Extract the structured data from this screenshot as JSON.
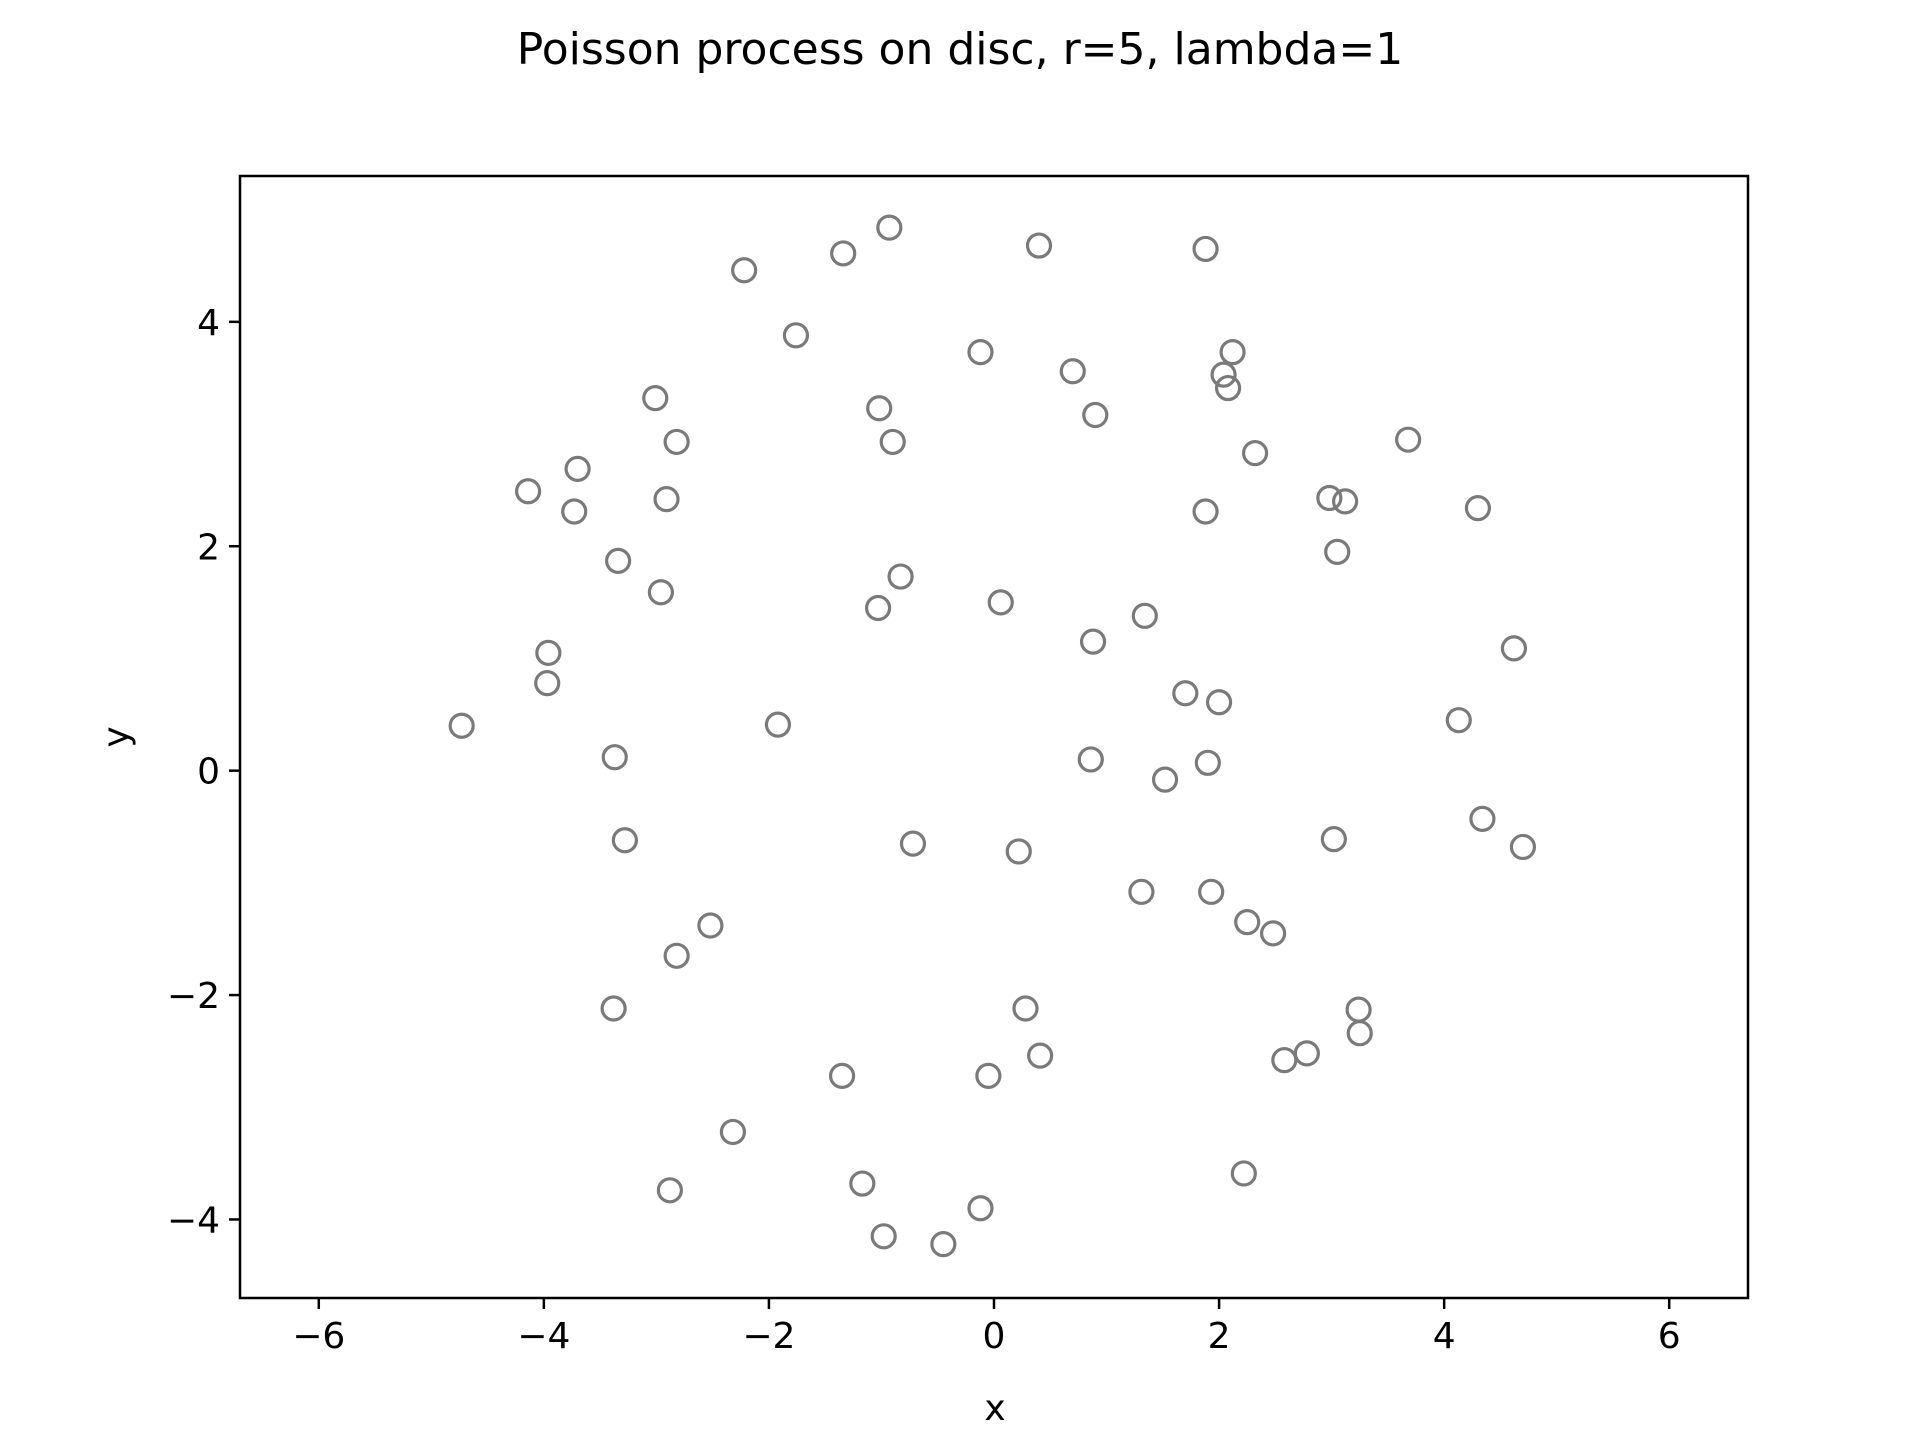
{
  "chart_data": {
    "type": "scatter",
    "title": "Poisson process on disc, r=5, lambda=1",
    "xlabel": "x",
    "ylabel": "y",
    "xlim": [
      -6.7,
      6.7
    ],
    "ylim": [
      -4.7,
      5.3
    ],
    "xticks": [
      -6,
      -4,
      -2,
      0,
      2,
      4,
      6
    ],
    "xtick_labels": [
      "−6",
      "−4",
      "−2",
      "0",
      "2",
      "4",
      "6"
    ],
    "yticks": [
      -4,
      -2,
      0,
      2,
      4
    ],
    "ytick_labels": [
      "−4",
      "−2",
      "0",
      "2",
      "4"
    ],
    "grid": false,
    "marker": "open-circle",
    "marker_color": "#7a7a7a",
    "points": [
      {
        "x": -0.93,
        "y": 4.84
      },
      {
        "x": -2.22,
        "y": 4.46
      },
      {
        "x": -1.34,
        "y": 4.61
      },
      {
        "x": 0.4,
        "y": 4.68
      },
      {
        "x": 1.88,
        "y": 4.65
      },
      {
        "x": -1.76,
        "y": 3.88
      },
      {
        "x": -0.12,
        "y": 3.73
      },
      {
        "x": 0.7,
        "y": 3.56
      },
      {
        "x": 2.12,
        "y": 3.73
      },
      {
        "x": 2.04,
        "y": 3.53
      },
      {
        "x": 2.08,
        "y": 3.41
      },
      {
        "x": -3.01,
        "y": 3.32
      },
      {
        "x": -1.02,
        "y": 3.23
      },
      {
        "x": 0.9,
        "y": 3.17
      },
      {
        "x": -2.82,
        "y": 2.93
      },
      {
        "x": -0.9,
        "y": 2.93
      },
      {
        "x": 2.32,
        "y": 2.83
      },
      {
        "x": 3.68,
        "y": 2.95
      },
      {
        "x": -3.7,
        "y": 2.69
      },
      {
        "x": -4.14,
        "y": 2.49
      },
      {
        "x": -2.91,
        "y": 2.42
      },
      {
        "x": -3.73,
        "y": 2.31
      },
      {
        "x": 1.88,
        "y": 2.31
      },
      {
        "x": 2.98,
        "y": 2.43
      },
      {
        "x": 3.12,
        "y": 2.4
      },
      {
        "x": 4.3,
        "y": 2.34
      },
      {
        "x": 3.05,
        "y": 1.95
      },
      {
        "x": -3.34,
        "y": 1.87
      },
      {
        "x": -0.83,
        "y": 1.73
      },
      {
        "x": -2.96,
        "y": 1.59
      },
      {
        "x": 0.06,
        "y": 1.5
      },
      {
        "x": -1.03,
        "y": 1.45
      },
      {
        "x": 1.34,
        "y": 1.38
      },
      {
        "x": 0.88,
        "y": 1.15
      },
      {
        "x": 4.62,
        "y": 1.09
      },
      {
        "x": -3.96,
        "y": 1.05
      },
      {
        "x": -3.97,
        "y": 0.78
      },
      {
        "x": 1.7,
        "y": 0.69
      },
      {
        "x": 2.0,
        "y": 0.61
      },
      {
        "x": -4.73,
        "y": 0.4
      },
      {
        "x": -1.92,
        "y": 0.41
      },
      {
        "x": 4.13,
        "y": 0.45
      },
      {
        "x": -3.37,
        "y": 0.12
      },
      {
        "x": 0.86,
        "y": 0.1
      },
      {
        "x": 1.9,
        "y": 0.07
      },
      {
        "x": 1.52,
        "y": -0.08
      },
      {
        "x": 4.34,
        "y": -0.43
      },
      {
        "x": -3.28,
        "y": -0.62
      },
      {
        "x": 3.02,
        "y": -0.61
      },
      {
        "x": -0.72,
        "y": -0.65
      },
      {
        "x": 0.22,
        "y": -0.72
      },
      {
        "x": 4.7,
        "y": -0.68
      },
      {
        "x": 1.31,
        "y": -1.08
      },
      {
        "x": 1.93,
        "y": -1.08
      },
      {
        "x": -2.52,
        "y": -1.38
      },
      {
        "x": 2.25,
        "y": -1.35
      },
      {
        "x": 2.48,
        "y": -1.45
      },
      {
        "x": -2.82,
        "y": -1.65
      },
      {
        "x": -3.38,
        "y": -2.12
      },
      {
        "x": 0.28,
        "y": -2.12
      },
      {
        "x": 3.24,
        "y": -2.13
      },
      {
        "x": 3.25,
        "y": -2.34
      },
      {
        "x": 0.41,
        "y": -2.54
      },
      {
        "x": 2.78,
        "y": -2.52
      },
      {
        "x": 2.58,
        "y": -2.58
      },
      {
        "x": -1.35,
        "y": -2.72
      },
      {
        "x": -0.05,
        "y": -2.72
      },
      {
        "x": -2.32,
        "y": -3.22
      },
      {
        "x": 2.22,
        "y": -3.59
      },
      {
        "x": -1.17,
        "y": -3.68
      },
      {
        "x": -2.88,
        "y": -3.74
      },
      {
        "x": -0.12,
        "y": -3.9
      },
      {
        "x": -0.98,
        "y": -4.15
      },
      {
        "x": -0.45,
        "y": -4.22
      }
    ]
  }
}
